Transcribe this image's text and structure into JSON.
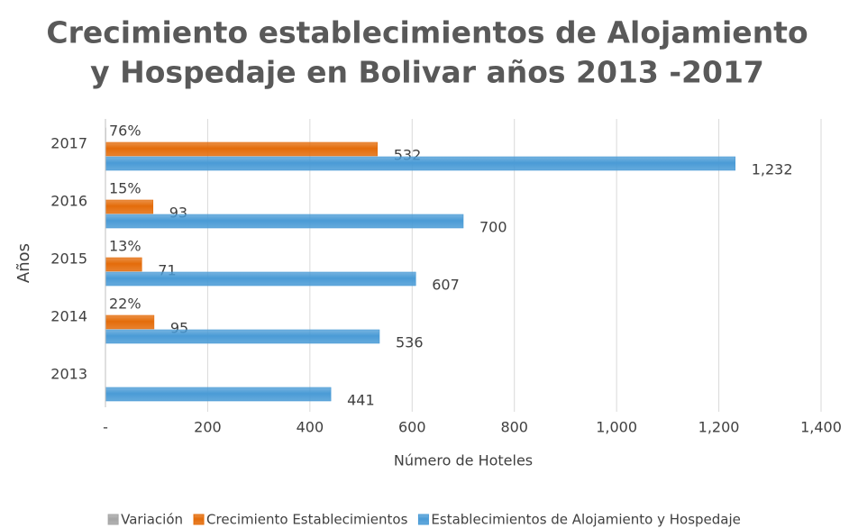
{
  "chart_data": {
    "type": "hbar",
    "title": [
      "Crecimiento establecimientos de Alojamiento",
      "y Hospedaje en Bolivar años 2013 -2017"
    ],
    "xlabel": "Número de Hoteles",
    "ylabel": "Años",
    "categories": [
      "2013",
      "2014",
      "2015",
      "2016",
      "2017"
    ],
    "series": [
      {
        "name": "Variación",
        "color": "#a5a5a5",
        "values": [
          null,
          0.22,
          0.13,
          0.15,
          0.76
        ],
        "value_labels": [
          null,
          "22%",
          "13%",
          "15%",
          "76%"
        ]
      },
      {
        "name": "Crecimiento Establecimientos",
        "color": "#e46c0a",
        "values": [
          null,
          95,
          71,
          93,
          532
        ]
      },
      {
        "name": "Establecimientos de Alojamiento y Hospedaje",
        "color": "#4a9bd6",
        "values": [
          441,
          536,
          607,
          700,
          1232
        ],
        "value_labels": [
          "441",
          "536",
          "607",
          "700",
          "1,232"
        ]
      }
    ],
    "xlim": [
      0,
      1400
    ],
    "xticks": [
      {
        "value": 0,
        "label": "-"
      },
      200,
      400,
      600,
      800,
      {
        "value": 1000,
        "label": "1,000"
      },
      {
        "value": 1200,
        "label": "1,200"
      },
      {
        "value": 1400,
        "label": "1,400"
      }
    ],
    "grid": true,
    "legend": "bottom"
  }
}
